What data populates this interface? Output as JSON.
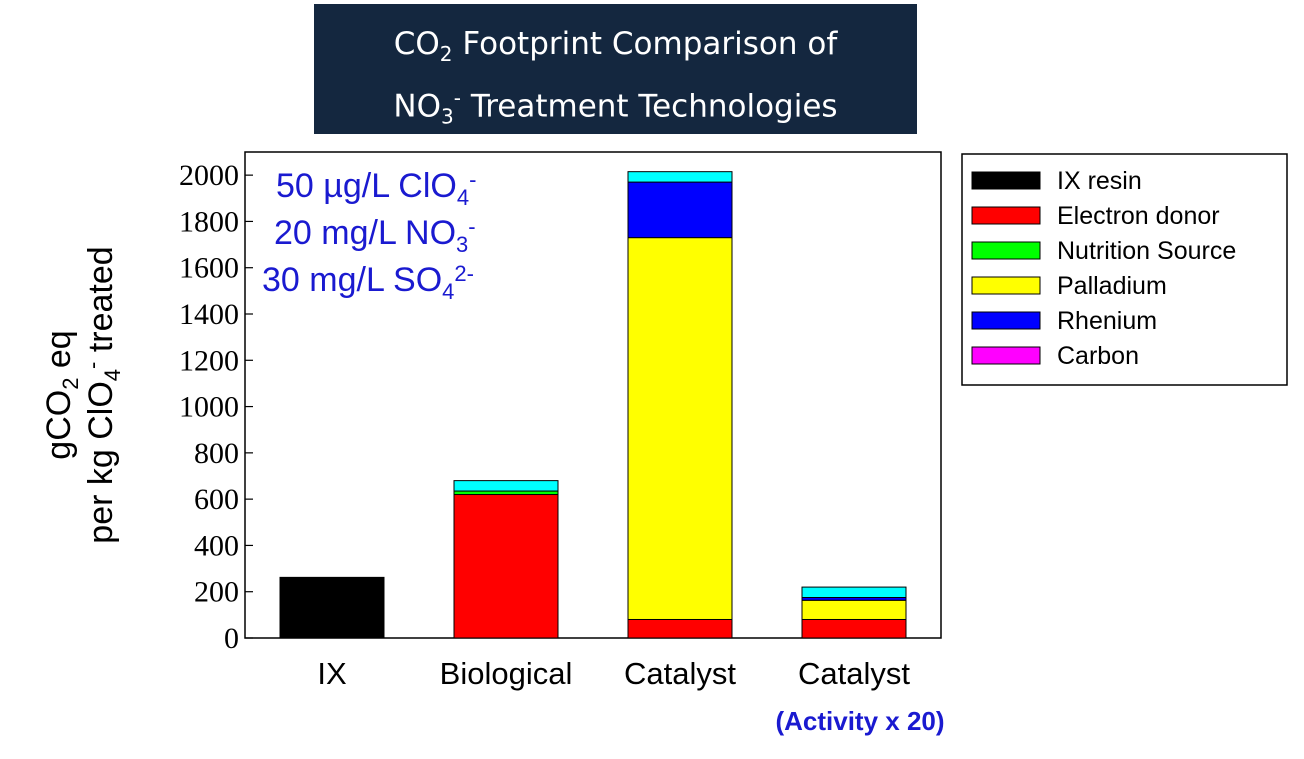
{
  "title": {
    "line1_prefix": "CO",
    "line1_sub": "2",
    "line1_suffix": " Footprint Comparison of",
    "line2_prefix": "NO",
    "line2_sub": "3",
    "line2_sup": "-",
    "line2_suffix": " Treatment Technologies"
  },
  "annotations": [
    {
      "text": "50 µg/L ClO",
      "sub": "4",
      "sup": "-"
    },
    {
      "text": "20 mg/L NO",
      "sub": "3",
      "sup": "-"
    },
    {
      "text": "30 mg/L SO",
      "sub": "4",
      "sup": "2-"
    }
  ],
  "ylabel": {
    "line1_prefix": "gCO",
    "line1_sub": "2",
    "line1_suffix": " eq",
    "line2_prefix": "per kg ClO",
    "line2_sub": "4",
    "line2_sup": "-",
    "line2_suffix": " treated"
  },
  "x_note": "(Activity x 20)",
  "colors": {
    "title_bg": "#14273f",
    "annotation": "#1a1ad0",
    "IX resin": "#000000",
    "Electron donor": "#ff0000",
    "Nutrition Source": "#00ff00",
    "Palladium": "#ffff00",
    "Rhenium": "#0000ff",
    "Carbon": "#ff00ff",
    "top": "#00ffff"
  },
  "chart_data": {
    "type": "bar",
    "stacked": true,
    "categories": [
      "IX",
      "Biological",
      "Catalyst",
      "Catalyst"
    ],
    "ylim": [
      0,
      2100
    ],
    "yticks": [
      0,
      200,
      400,
      600,
      800,
      1000,
      1200,
      1400,
      1600,
      1800,
      2000
    ],
    "legend_position": "right",
    "legend": [
      "IX resin",
      "Electron donor",
      "Nutrition Source",
      "Palladium",
      "Rhenium",
      "Carbon"
    ],
    "series": [
      {
        "name": "IX resin",
        "color": "#000000",
        "values": [
          262,
          0,
          0,
          0
        ]
      },
      {
        "name": "Electron donor",
        "color": "#ff0000",
        "values": [
          0,
          620,
          80,
          80
        ]
      },
      {
        "name": "Nutrition Source",
        "color": "#00ff00",
        "values": [
          0,
          15,
          0,
          0
        ]
      },
      {
        "name": "Palladium",
        "color": "#ffff00",
        "values": [
          0,
          0,
          1650,
          83
        ]
      },
      {
        "name": "Rhenium",
        "color": "#0000ff",
        "values": [
          0,
          0,
          240,
          12
        ]
      },
      {
        "name": "Carbon",
        "color": "#ff00ff",
        "values": [
          0,
          0,
          0,
          0
        ]
      },
      {
        "color": "#00ffff",
        "values": [
          0,
          45,
          45,
          45
        ]
      }
    ]
  }
}
